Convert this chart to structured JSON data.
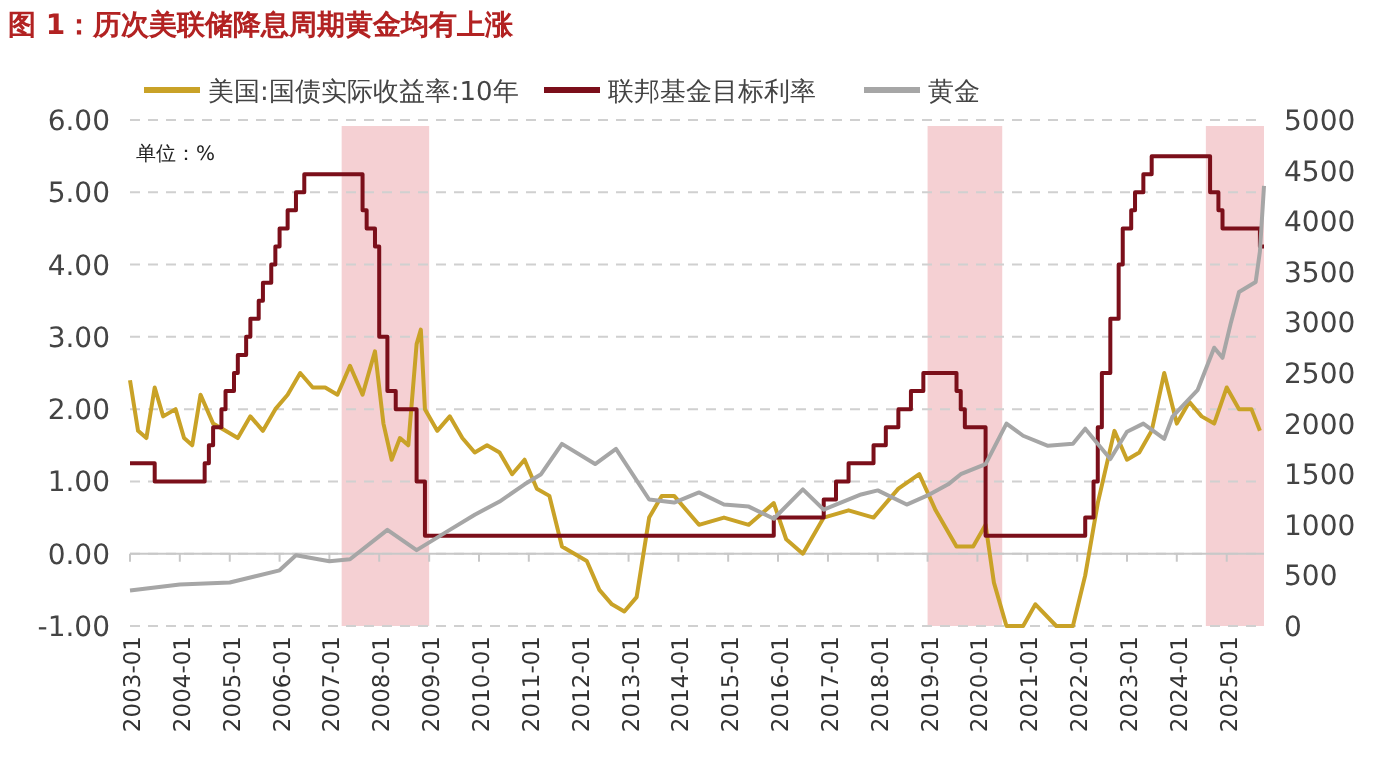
{
  "chart_data": {
    "type": "line",
    "title": "图 1：历次美联储降息周期黄金均有上涨",
    "annotations": [
      "单位：%"
    ],
    "xlim": [
      "2003-01",
      "2025-10"
    ],
    "xticks": [
      "2003-01",
      "2004-01",
      "2005-01",
      "2006-01",
      "2007-01",
      "2008-01",
      "2009-01",
      "2010-01",
      "2011-01",
      "2012-01",
      "2013-01",
      "2014-01",
      "2015-01",
      "2016-01",
      "2017-01",
      "2018-01",
      "2019-01",
      "2020-01",
      "2021-01",
      "2022-01",
      "2023-01",
      "2024-01",
      "2025-01"
    ],
    "ylim": [
      -1,
      6
    ],
    "yticks": [
      {
        "value": -1,
        "label": "-1.00"
      },
      {
        "value": 0,
        "label": "0.00"
      },
      {
        "value": 1,
        "label": "1.00"
      },
      {
        "value": 2,
        "label": "2.00"
      },
      {
        "value": 3,
        "label": "3.00"
      },
      {
        "value": 4,
        "label": "4.00"
      },
      {
        "value": 5,
        "label": "5.00"
      },
      {
        "value": 6,
        "label": "6.00"
      }
    ],
    "y2lim": [
      0,
      5000
    ],
    "y2ticks": [
      0,
      500,
      1000,
      1500,
      2000,
      2500,
      3000,
      3500,
      4000,
      4500,
      5000
    ],
    "grid": "y",
    "legend": "top",
    "line_style": "solid",
    "bands": [
      {
        "axis": "x",
        "from": "2007-04",
        "to": "2009-01",
        "color": "#f2c4c8"
      },
      {
        "axis": "x",
        "from": "2019-01",
        "to": "2020-07",
        "color": "#f2c4c8"
      },
      {
        "axis": "x",
        "from": "2024-08",
        "to": "2025-10",
        "color": "#f2c4c8"
      }
    ],
    "series": [
      {
        "name": "美国:国债实际收益率:10年",
        "color": "#c9a227",
        "x": [
          "2003-01",
          "2003-03",
          "2003-05",
          "2003-07",
          "2003-09",
          "2003-12",
          "2004-02",
          "2004-04",
          "2004-06",
          "2004-09",
          "2004-12",
          "2005-03",
          "2005-06",
          "2005-09",
          "2005-12",
          "2006-03",
          "2006-06",
          "2006-09",
          "2006-12",
          "2007-03",
          "2007-06",
          "2007-09",
          "2007-12",
          "2008-02",
          "2008-04",
          "2008-06",
          "2008-08",
          "2008-10",
          "2008-11",
          "2008-12",
          "2009-03",
          "2009-06",
          "2009-09",
          "2009-12",
          "2010-03",
          "2010-06",
          "2010-09",
          "2010-12",
          "2011-03",
          "2011-06",
          "2011-09",
          "2011-12",
          "2012-03",
          "2012-06",
          "2012-09",
          "2012-12",
          "2013-03",
          "2013-06",
          "2013-09",
          "2013-12",
          "2014-06",
          "2014-12",
          "2015-06",
          "2015-12",
          "2016-03",
          "2016-07",
          "2016-12",
          "2017-06",
          "2017-12",
          "2018-06",
          "2018-11",
          "2019-03",
          "2019-08",
          "2019-12",
          "2020-03",
          "2020-05",
          "2020-08",
          "2020-12",
          "2021-03",
          "2021-08",
          "2021-12",
          "2022-03",
          "2022-06",
          "2022-10",
          "2023-01",
          "2023-04",
          "2023-07",
          "2023-10",
          "2024-01",
          "2024-04",
          "2024-07",
          "2024-10",
          "2025-01",
          "2025-04",
          "2025-07",
          "2025-09"
        ],
        "values": [
          2.4,
          1.7,
          1.6,
          2.3,
          1.9,
          2.0,
          1.6,
          1.5,
          2.2,
          1.8,
          1.7,
          1.6,
          1.9,
          1.7,
          2.0,
          2.2,
          2.5,
          2.3,
          2.3,
          2.2,
          2.6,
          2.2,
          2.8,
          1.8,
          1.3,
          1.6,
          1.5,
          2.9,
          3.1,
          2.0,
          1.7,
          1.9,
          1.6,
          1.4,
          1.5,
          1.4,
          1.1,
          1.3,
          0.9,
          0.8,
          0.1,
          0.0,
          -0.1,
          -0.5,
          -0.7,
          -0.8,
          -0.6,
          0.5,
          0.8,
          0.8,
          0.4,
          0.5,
          0.4,
          0.7,
          0.2,
          0.0,
          0.5,
          0.6,
          0.5,
          0.9,
          1.1,
          0.6,
          0.1,
          0.1,
          0.4,
          -0.4,
          -1.0,
          -1.0,
          -0.7,
          -1.0,
          -1.0,
          -0.3,
          0.7,
          1.7,
          1.3,
          1.4,
          1.7,
          2.5,
          1.8,
          2.1,
          1.9,
          1.8,
          2.3,
          2.0,
          2.0,
          1.7
        ]
      },
      {
        "name": "联邦基金目标利率",
        "type": "step",
        "color": "#7b0f1a",
        "x": [
          "2003-01",
          "2003-07",
          "2004-07",
          "2004-08",
          "2004-09",
          "2004-11",
          "2004-12",
          "2005-02",
          "2005-03",
          "2005-05",
          "2005-06",
          "2005-08",
          "2005-09",
          "2005-11",
          "2005-12",
          "2006-01",
          "2006-03",
          "2006-05",
          "2006-07",
          "2007-09",
          "2007-10",
          "2007-12",
          "2008-01",
          "2008-03",
          "2008-05",
          "2008-10",
          "2008-12",
          "2015-12",
          "2016-12",
          "2017-03",
          "2017-06",
          "2017-12",
          "2018-03",
          "2018-06",
          "2018-09",
          "2018-12",
          "2019-08",
          "2019-09",
          "2019-10",
          "2020-03",
          "2022-03",
          "2022-05",
          "2022-06",
          "2022-07",
          "2022-09",
          "2022-11",
          "2022-12",
          "2023-02",
          "2023-03",
          "2023-05",
          "2023-07",
          "2024-09",
          "2024-11",
          "2024-12",
          "2025-09",
          "2025-10"
        ],
        "values": [
          1.25,
          1.0,
          1.25,
          1.5,
          1.75,
          2.0,
          2.25,
          2.5,
          2.75,
          3.0,
          3.25,
          3.5,
          3.75,
          4.0,
          4.25,
          4.5,
          4.75,
          5.0,
          5.25,
          4.75,
          4.5,
          4.25,
          3.0,
          2.25,
          2.0,
          1.0,
          0.25,
          0.5,
          0.75,
          1.0,
          1.25,
          1.5,
          1.75,
          2.0,
          2.25,
          2.5,
          2.25,
          2.0,
          1.75,
          0.25,
          0.5,
          1.0,
          1.75,
          2.5,
          3.25,
          4.0,
          4.5,
          4.75,
          5.0,
          5.25,
          5.5,
          5.0,
          4.75,
          4.5,
          4.25,
          4.25
        ]
      },
      {
        "name": "黄金",
        "axis": "y2",
        "color": "#a6a6a6",
        "x": [
          "2003-01",
          "2004-01",
          "2005-01",
          "2006-01",
          "2006-05",
          "2007-01",
          "2007-06",
          "2008-03",
          "2008-10",
          "2009-06",
          "2009-12",
          "2010-06",
          "2010-12",
          "2011-04",
          "2011-09",
          "2012-05",
          "2012-10",
          "2013-06",
          "2013-12",
          "2014-06",
          "2014-12",
          "2015-06",
          "2015-12",
          "2016-07",
          "2016-12",
          "2017-09",
          "2018-01",
          "2018-08",
          "2019-01",
          "2019-06",
          "2019-09",
          "2020-03",
          "2020-08",
          "2020-12",
          "2021-06",
          "2021-12",
          "2022-03",
          "2022-09",
          "2023-01",
          "2023-05",
          "2023-10",
          "2023-12",
          "2024-03",
          "2024-06",
          "2024-10",
          "2024-12",
          "2025-02",
          "2025-04",
          "2025-06",
          "2025-08",
          "2025-09",
          "2025-10"
        ],
        "values": [
          350,
          410,
          430,
          550,
          700,
          640,
          660,
          950,
          750,
          950,
          1100,
          1230,
          1400,
          1500,
          1800,
          1600,
          1750,
          1250,
          1220,
          1320,
          1200,
          1180,
          1060,
          1350,
          1150,
          1300,
          1340,
          1200,
          1290,
          1400,
          1500,
          1600,
          2000,
          1880,
          1780,
          1800,
          1950,
          1650,
          1920,
          2000,
          1850,
          2070,
          2200,
          2330,
          2750,
          2650,
          3000,
          3300,
          3350,
          3400,
          3700,
          4350
        ]
      }
    ]
  }
}
